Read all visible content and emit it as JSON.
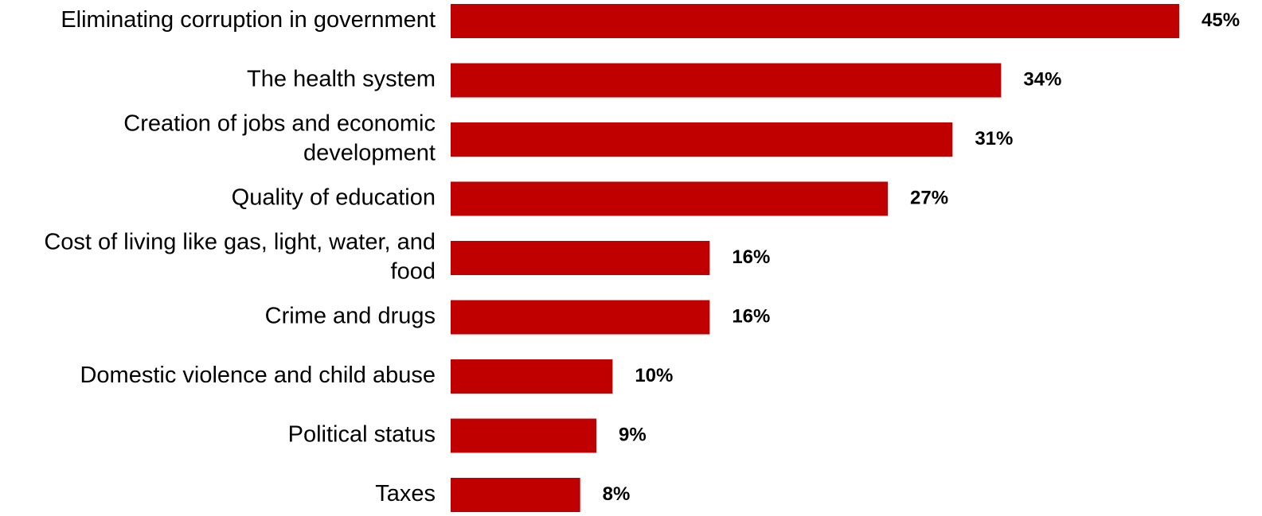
{
  "chart_data": {
    "type": "bar",
    "orientation": "horizontal",
    "categories": [
      [
        "Eliminating corruption in government"
      ],
      [
        "The health system"
      ],
      [
        "Creation of jobs and economic",
        "development"
      ],
      [
        "Quality of education"
      ],
      [
        "Cost of living like gas, light, water, and",
        "food"
      ],
      [
        "Crime and drugs"
      ],
      [
        "Domestic violence and child abuse"
      ],
      [
        "Political status"
      ],
      [
        "Taxes"
      ]
    ],
    "values": [
      45,
      34,
      31,
      27,
      16,
      16,
      10,
      9,
      8
    ],
    "value_labels": [
      "45%",
      "34%",
      "31%",
      "27%",
      "16%",
      "16%",
      "10%",
      "9%",
      "8%"
    ],
    "unit": "%",
    "xlim": [
      0,
      45
    ],
    "grid": false,
    "legend": "none",
    "bar_color": "#C00000",
    "title": "",
    "xlabel": "",
    "ylabel": ""
  }
}
